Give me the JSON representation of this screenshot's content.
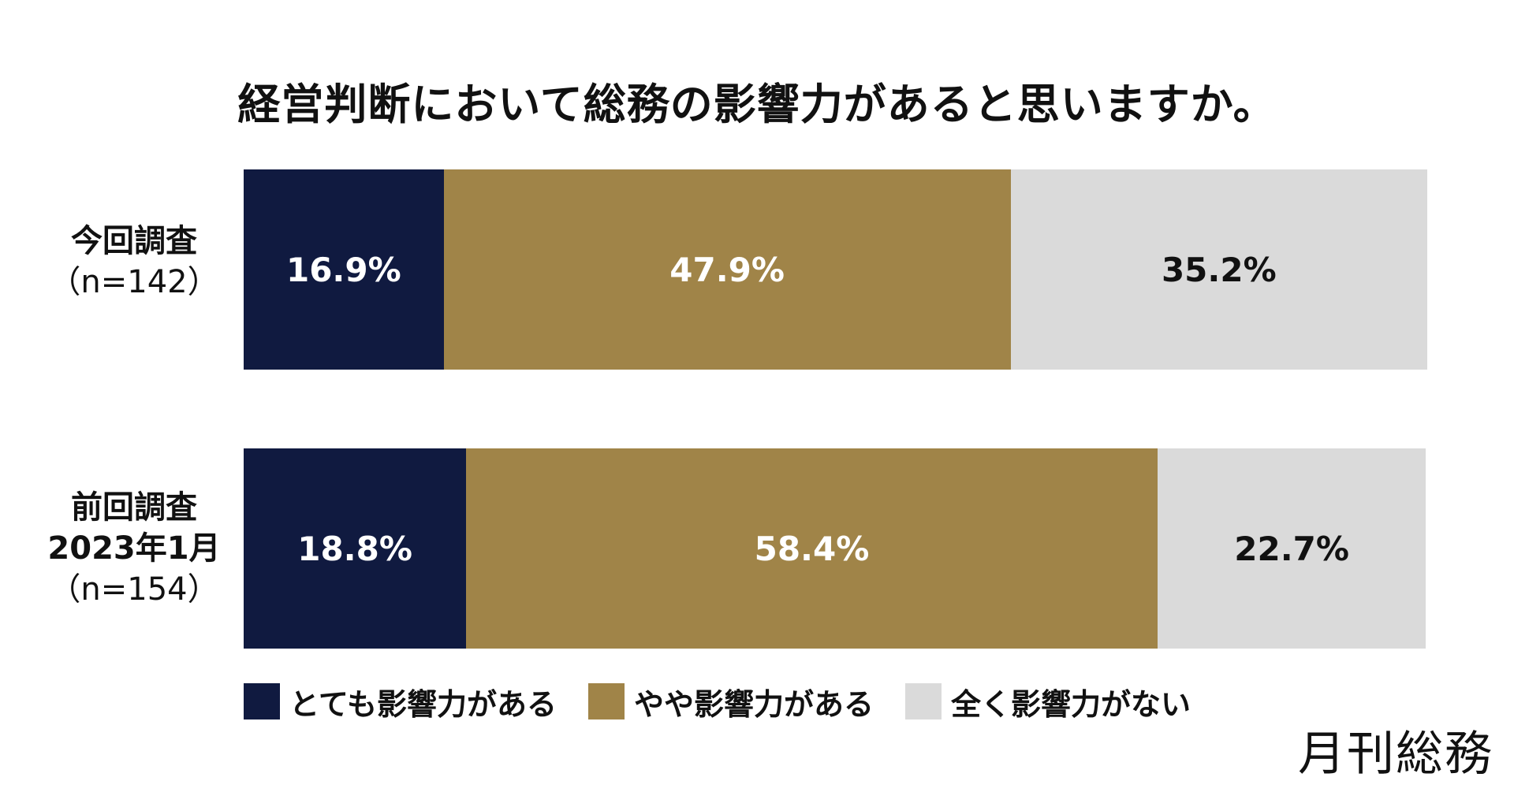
{
  "chart_data": {
    "type": "bar",
    "orientation": "horizontal",
    "stacked": true,
    "normalized": true,
    "title": "経営判断において総務の影響力があると思いますか。",
    "categories": [
      {
        "label": "今回調査",
        "n_label": "（n=142）"
      },
      {
        "label": "前回調査",
        "sub_label": "2023年1月",
        "n_label": "（n=154）"
      }
    ],
    "series": [
      {
        "name": "とても影響力がある",
        "color": "#101a40",
        "text_color": "#ffffff",
        "values": [
          16.9,
          18.8
        ],
        "labels": [
          "16.9%",
          "18.8%"
        ]
      },
      {
        "name": "やや影響力がある",
        "color": "#a08448",
        "text_color": "#ffffff",
        "values": [
          47.9,
          58.4
        ],
        "labels": [
          "47.9%",
          "58.4%"
        ]
      },
      {
        "name": "全く影響力がない",
        "color": "#dadada",
        "text_color": "#111111",
        "values": [
          35.2,
          22.7
        ],
        "labels": [
          "35.2%",
          "22.7%"
        ]
      }
    ],
    "xlim": [
      0,
      100
    ],
    "grid": false,
    "legend_position": "bottom-left"
  },
  "brand": "月刊総務"
}
